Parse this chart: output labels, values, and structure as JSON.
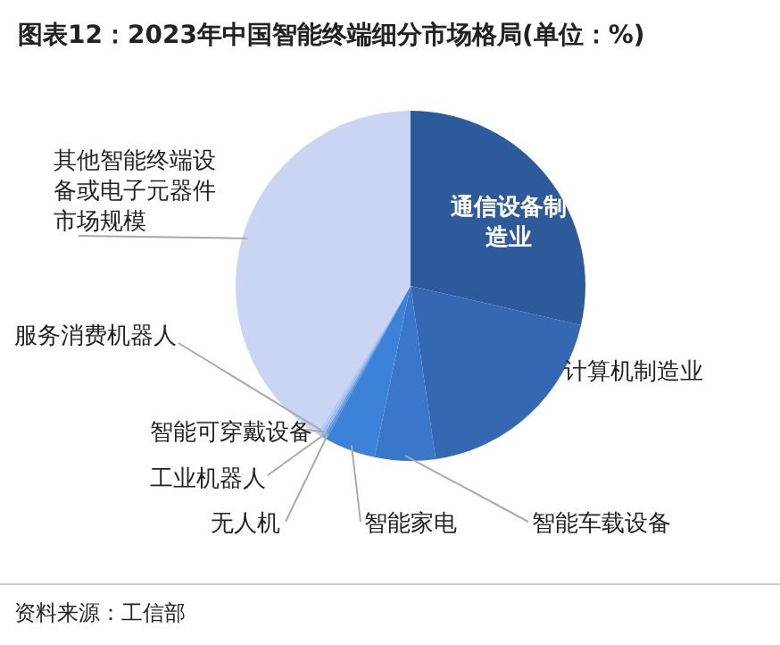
{
  "chart_data": {
    "type": "pie",
    "title": "图表12：2023年中国智能终端细分市场格局(单位：%)",
    "categories": [
      "通信设备制造业",
      "计算机制造业",
      "智能车载设备",
      "智能家电",
      "无人机",
      "工业机器人",
      "智能可穿戴设备",
      "服务消费机器人",
      "其他智能终端设备或电子元器件市场规模"
    ],
    "values": [
      28.6,
      19.1,
      5.6,
      4.7,
      0.2,
      0.2,
      0.3,
      0.3,
      41.0
    ],
    "colors": [
      "#2d5a9b",
      "#3468b3",
      "#3a76c9",
      "#3d82d9",
      "#4a8fe0",
      "#6aa0e5",
      "#9dbcef",
      "#b8caf0",
      "#c9d5f2"
    ],
    "annotations": [
      "资料来源：工信部"
    ]
  }
}
